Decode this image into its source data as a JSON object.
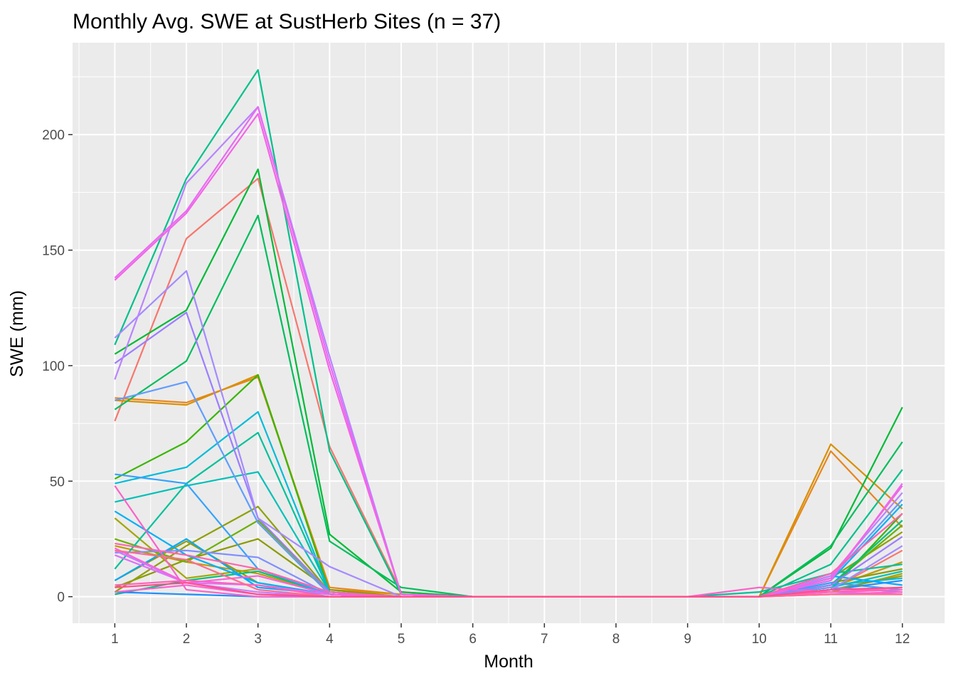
{
  "chart_data": {
    "type": "line",
    "title": "Monthly Avg. SWE at SustHerb Sites (n = 37)",
    "xlabel": "Month",
    "ylabel": "SWE (mm)",
    "x": [
      1,
      2,
      3,
      4,
      5,
      6,
      7,
      8,
      9,
      10,
      11,
      12
    ],
    "x_tick_labels": [
      "1",
      "2",
      "3",
      "4",
      "5",
      "6",
      "7",
      "8",
      "9",
      "10",
      "11",
      "12"
    ],
    "xlim": [
      0.41,
      12.59
    ],
    "y_ticks": [
      0,
      50,
      100,
      150,
      200
    ],
    "y_tick_labels": [
      "0",
      "50",
      "100",
      "150",
      "200"
    ],
    "ylim": [
      -11.5,
      239.8
    ],
    "grid": true,
    "legend": "none",
    "series": [
      {
        "color": "#F8766D",
        "values": [
          76,
          155,
          181,
          65,
          2,
          0,
          0,
          0,
          0,
          0,
          3,
          20
        ]
      },
      {
        "color": "#E7851E",
        "values": [
          86,
          84,
          95,
          4,
          1,
          0,
          0,
          0,
          0,
          0,
          63,
          30
        ]
      },
      {
        "color": "#D89000",
        "values": [
          85,
          83,
          96,
          3,
          1,
          0,
          0,
          0,
          0,
          0,
          66,
          38
        ]
      },
      {
        "color": "#C09B00",
        "values": [
          22,
          15,
          10,
          1,
          0,
          0,
          0,
          0,
          0,
          0,
          4,
          15
        ]
      },
      {
        "color": "#A3A500",
        "values": [
          34,
          8,
          12,
          1,
          0,
          0,
          0,
          0,
          0,
          0,
          2,
          10
        ]
      },
      {
        "color": "#9A9A00",
        "values": [
          7,
          24,
          6,
          1,
          0,
          0,
          0,
          0,
          0,
          0,
          3,
          9
        ]
      },
      {
        "color": "#8A9A00",
        "values": [
          4,
          16,
          25,
          3,
          0,
          0,
          0,
          0,
          0,
          0,
          6,
          12
        ]
      },
      {
        "color": "#8FA000",
        "values": [
          2,
          22,
          39,
          2,
          0,
          0,
          0,
          0,
          0,
          0,
          8,
          28
        ]
      },
      {
        "color": "#6BB100",
        "values": [
          25,
          15,
          33,
          2,
          0,
          0,
          0,
          0,
          0,
          0,
          5,
          31
        ]
      },
      {
        "color": "#39B600",
        "values": [
          51,
          67,
          96,
          2,
          0,
          0,
          0,
          0,
          0,
          0,
          3,
          36
        ]
      },
      {
        "color": "#00BA38",
        "values": [
          105,
          124,
          185,
          27,
          2,
          0,
          0,
          0,
          0,
          0,
          21,
          82
        ]
      },
      {
        "color": "#00BD5C",
        "values": [
          81,
          102,
          165,
          24,
          4,
          0,
          0,
          0,
          0,
          0,
          22,
          67
        ]
      },
      {
        "color": "#00BF7D",
        "values": [
          1,
          7,
          11,
          1,
          0,
          0,
          0,
          0,
          0,
          0,
          5,
          33
        ]
      },
      {
        "color": "#00C08B",
        "values": [
          109,
          181,
          228,
          63,
          1,
          0,
          0,
          0,
          0,
          0,
          14,
          55
        ]
      },
      {
        "color": "#00C19A",
        "values": [
          12,
          49,
          71,
          2,
          0,
          0,
          0,
          0,
          0,
          2,
          10,
          14
        ]
      },
      {
        "color": "#00C0B8",
        "values": [
          41,
          48,
          54,
          2,
          0,
          0,
          0,
          0,
          0,
          0,
          4,
          11
        ]
      },
      {
        "color": "#00BCD8",
        "values": [
          49,
          56,
          80,
          2,
          0,
          0,
          0,
          0,
          0,
          0,
          5,
          8
        ]
      },
      {
        "color": "#00B0F6",
        "values": [
          37,
          18,
          6,
          1,
          0,
          0,
          0,
          0,
          0,
          0,
          7,
          40
        ]
      },
      {
        "color": "#00A9FF",
        "values": [
          7,
          25,
          4,
          1,
          0,
          0,
          0,
          0,
          0,
          0,
          9,
          5
        ]
      },
      {
        "color": "#35A2FF",
        "values": [
          53,
          49,
          12,
          1,
          0,
          0,
          0,
          0,
          0,
          0,
          6,
          3
        ]
      },
      {
        "color": "#1E90FF",
        "values": [
          2,
          1,
          0,
          0,
          0,
          0,
          0,
          0,
          0,
          0,
          3,
          7
        ]
      },
      {
        "color": "#619CFF",
        "values": [
          85,
          93,
          32,
          1,
          0,
          0,
          0,
          0,
          0,
          0,
          8,
          42
        ]
      },
      {
        "color": "#7F8FFF",
        "values": [
          19,
          20,
          17,
          1,
          0,
          0,
          0,
          0,
          0,
          0,
          4,
          2
        ]
      },
      {
        "color": "#9C7DFF",
        "values": [
          101,
          123,
          34,
          2,
          0,
          0,
          0,
          0,
          0,
          0,
          5,
          26
        ]
      },
      {
        "color": "#A58AFF",
        "values": [
          112,
          141,
          34,
          13,
          0,
          0,
          0,
          0,
          0,
          0,
          3,
          22
        ]
      },
      {
        "color": "#B983FF",
        "values": [
          94,
          179,
          212,
          104,
          1,
          0,
          0,
          0,
          0,
          0,
          9,
          45
        ]
      },
      {
        "color": "#C77CFF",
        "values": [
          20,
          6,
          2,
          0,
          0,
          0,
          0,
          0,
          0,
          0,
          2,
          1
        ]
      },
      {
        "color": "#DC71FA",
        "values": [
          18,
          6,
          5,
          1,
          0,
          0,
          0,
          0,
          0,
          0,
          1,
          2
        ]
      },
      {
        "color": "#E76BF3",
        "values": [
          138,
          167,
          212,
          101,
          1,
          0,
          0,
          0,
          0,
          0,
          7,
          49
        ]
      },
      {
        "color": "#F365E6",
        "values": [
          137,
          166,
          209,
          98,
          1,
          0,
          0,
          0,
          0,
          0,
          8,
          48
        ]
      },
      {
        "color": "#F962DD",
        "values": [
          21,
          6,
          9,
          1,
          0,
          0,
          0,
          0,
          0,
          0,
          2,
          3
        ]
      },
      {
        "color": "#FA62C8",
        "values": [
          48,
          3,
          0,
          0,
          0,
          0,
          0,
          0,
          0,
          4,
          2,
          4
        ]
      },
      {
        "color": "#FD61D1",
        "values": [
          2,
          5,
          1,
          0,
          0,
          0,
          0,
          0,
          0,
          0,
          1,
          2
        ]
      },
      {
        "color": "#FF62BC",
        "values": [
          5,
          7,
          5,
          0,
          0,
          0,
          0,
          0,
          0,
          0,
          2,
          3
        ]
      },
      {
        "color": "#FF65AE",
        "values": [
          23,
          18,
          12,
          2,
          0,
          0,
          0,
          0,
          0,
          0,
          10,
          36
        ]
      },
      {
        "color": "#FF6C91",
        "values": [
          20,
          16,
          3,
          0,
          0,
          0,
          0,
          0,
          0,
          0,
          1,
          1
        ]
      },
      {
        "color": "#FF4F8A",
        "values": [
          4,
          6,
          1,
          0,
          0,
          0,
          0,
          0,
          0,
          0,
          3,
          4
        ]
      }
    ]
  }
}
